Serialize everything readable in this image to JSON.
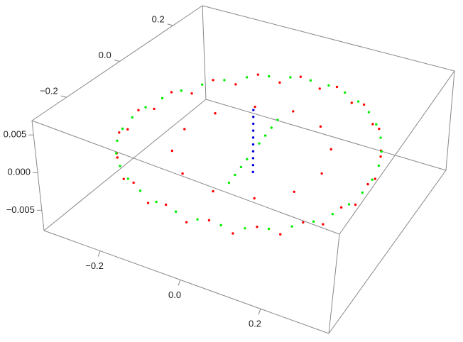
{
  "chart_data": {
    "type": "scatter3d",
    "xlim": [
      -0.34,
      0.37
    ],
    "ylim": [
      -0.33,
      0.31
    ],
    "zlim": [
      -0.0077,
      0.0069
    ],
    "xticks": [
      {
        "value": -0.2,
        "label": "−0.2"
      },
      {
        "value": 0,
        "label": "0.0"
      },
      0.2
    ],
    "yticks": [
      {
        "value": -0.2,
        "label": "−0.2"
      },
      {
        "value": 0,
        "label": "0.0"
      },
      0.2
    ],
    "zticks": [
      {
        "value": -0.005,
        "label": "−0.005"
      },
      {
        "value": 0,
        "label": "0.000"
      },
      0.005
    ],
    "series": [
      {
        "color": "#ff0000",
        "x": [
          0.3,
          0.295,
          0.282,
          0.26,
          0.23,
          0.193,
          0.15,
          0.103,
          0.052,
          0,
          -0.052,
          -0.103,
          -0.15,
          -0.193,
          -0.23,
          -0.26,
          -0.282,
          -0.295,
          -0.3,
          -0.295,
          -0.282,
          -0.26,
          -0.23,
          -0.193,
          -0.15,
          -0.103,
          -0.052,
          0,
          0.052,
          0.103,
          0.15,
          0.193,
          0.23,
          0.26,
          0.282,
          0.295,
          0.18,
          0.156,
          0.09,
          0,
          -0.09,
          -0.156,
          -0.18,
          -0.156,
          -0.09,
          0,
          0.09,
          0.156
        ],
        "y": [
          0,
          0.052,
          0.103,
          0.15,
          0.193,
          0.23,
          0.26,
          0.282,
          0.295,
          0.3,
          0.295,
          0.282,
          0.26,
          0.23,
          0.193,
          0.15,
          0.103,
          0.052,
          0,
          -0.052,
          -0.103,
          -0.15,
          -0.193,
          -0.23,
          -0.26,
          -0.282,
          -0.295,
          -0.3,
          -0.295,
          -0.282,
          -0.26,
          -0.23,
          -0.193,
          -0.15,
          -0.103,
          -0.052,
          0,
          0.09,
          0.156,
          0.18,
          0.156,
          0.09,
          0,
          -0.09,
          -0.156,
          -0.18,
          -0.156,
          -0.09
        ],
        "z": [
          0.0006,
          -0.0006,
          0.0006,
          -0.0006,
          0.0006,
          -0.0006,
          0.0006,
          -0.0006,
          0.0006,
          -0.0006,
          0.0006,
          -0.0006,
          0.0006,
          -0.0006,
          0.0006,
          -0.0006,
          0.0006,
          -0.0006,
          0.0006,
          -0.0006,
          0.0006,
          -0.0006,
          0.0006,
          -0.0006,
          0.0006,
          -0.0006,
          0.0006,
          -0.0006,
          0.0006,
          -0.0006,
          0.0006,
          -0.0006,
          0.0006,
          -0.0006,
          0.0006,
          -0.0006,
          0,
          0,
          0,
          0,
          0,
          0,
          0,
          0,
          0,
          0,
          0,
          0
        ]
      },
      {
        "color": "#00ee00",
        "x": [
          0.299,
          0.29,
          0.272,
          0.246,
          0.212,
          0.172,
          0.127,
          0.078,
          0.026,
          -0.026,
          -0.078,
          -0.127,
          -0.172,
          -0.212,
          -0.246,
          -0.272,
          -0.29,
          -0.299,
          -0.299,
          -0.29,
          -0.272,
          -0.246,
          -0.212,
          -0.172,
          -0.127,
          -0.078,
          -0.026,
          0.026,
          0.078,
          0.127,
          0.172,
          0.212,
          0.246,
          0.272,
          0.29,
          0.299,
          -0.04,
          -0.03,
          -0.02,
          -0.01,
          0.01,
          0.02,
          0.03,
          0.04
        ],
        "y": [
          0.026,
          0.078,
          0.127,
          0.172,
          0.212,
          0.246,
          0.272,
          0.29,
          0.299,
          0.299,
          0.29,
          0.272,
          0.246,
          0.212,
          0.172,
          0.127,
          0.078,
          0.026,
          -0.026,
          -0.078,
          -0.127,
          -0.172,
          -0.212,
          -0.246,
          -0.272,
          -0.29,
          -0.299,
          -0.299,
          -0.29,
          -0.272,
          -0.246,
          -0.212,
          -0.172,
          -0.127,
          -0.078,
          -0.026,
          -0.04,
          -0.03,
          -0.02,
          -0.01,
          0.01,
          0.02,
          0.03,
          0.04
        ],
        "z": [
          0.0003,
          0.0003,
          0.0003,
          0.0003,
          0.0003,
          0.0003,
          0.0003,
          0.0003,
          0.0003,
          0.0003,
          0.0003,
          0.0003,
          0.0003,
          0.0003,
          0.0003,
          0.0003,
          0.0003,
          0.0003,
          0.0003,
          0.0003,
          0.0003,
          0.0003,
          0.0003,
          0.0003,
          0.0003,
          0.0003,
          0.0003,
          0.0003,
          0.0003,
          0.0003,
          0.0003,
          0.0003,
          0.0003,
          0.0003,
          0.0003,
          0.0003,
          -0.004,
          -0.003,
          -0.002,
          -0.001,
          0.001,
          0.002,
          0.003,
          0.004
        ]
      },
      {
        "color": "#0000dd",
        "x": [
          0,
          0,
          0,
          0,
          0,
          0,
          0,
          0,
          0,
          0
        ],
        "y": [
          0,
          0,
          0,
          0,
          0,
          0,
          0,
          0,
          0,
          0
        ],
        "z": [
          -0.003,
          -0.002,
          -0.001,
          0,
          0.001,
          0.002,
          0.003,
          0.004,
          0.005,
          0.006
        ]
      }
    ]
  }
}
